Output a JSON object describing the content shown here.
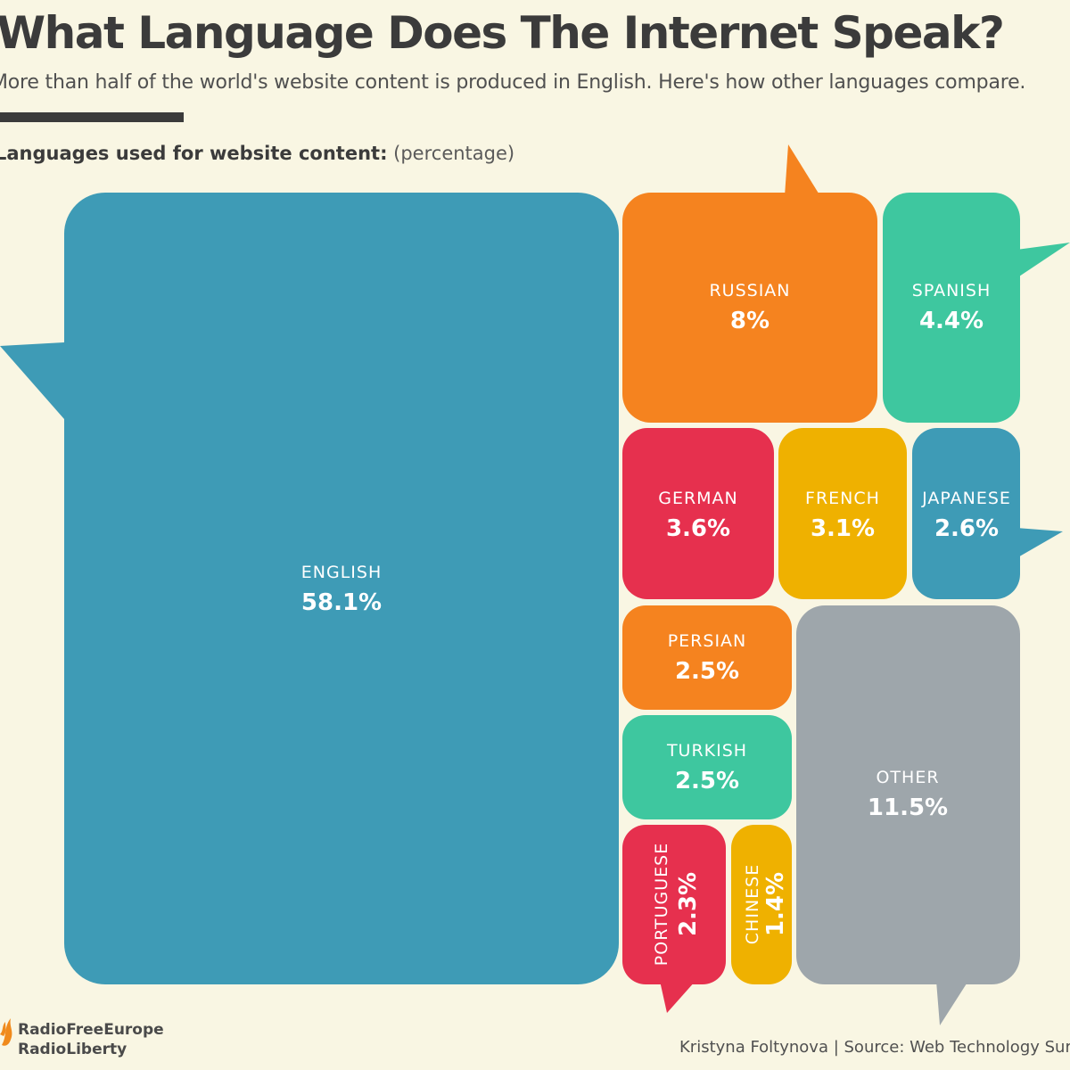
{
  "title": "What Language Does The Internet Speak?",
  "subtitle": "More than half of the world's website content is produced in English. Here's how other languages compare.",
  "chart_label": "Languages used for website content:",
  "chart_unit": "(percentage)",
  "colors": {
    "background": "#f9f6e3",
    "blue": "#3e9bb6",
    "orange": "#f5831f",
    "teal": "#3ec79f",
    "red": "#e6304e",
    "yellow": "#efb100",
    "gray": "#9ea6ab"
  },
  "chart_data": {
    "type": "treemap",
    "unit": "%",
    "items": [
      {
        "label": "ENGLISH",
        "value": 58.1,
        "display": "58.1%",
        "color": "#3e9bb6"
      },
      {
        "label": "RUSSIAN",
        "value": 8,
        "display": "8%",
        "color": "#f5831f"
      },
      {
        "label": "SPANISH",
        "value": 4.4,
        "display": "4.4%",
        "color": "#3ec79f"
      },
      {
        "label": "GERMAN",
        "value": 3.6,
        "display": "3.6%",
        "color": "#e6304e"
      },
      {
        "label": "FRENCH",
        "value": 3.1,
        "display": "3.1%",
        "color": "#efb100"
      },
      {
        "label": "JAPANESE",
        "value": 2.6,
        "display": "2.6%",
        "color": "#3e9bb6"
      },
      {
        "label": "PERSIAN",
        "value": 2.5,
        "display": "2.5%",
        "color": "#f5831f"
      },
      {
        "label": "TURKISH",
        "value": 2.5,
        "display": "2.5%",
        "color": "#3ec79f"
      },
      {
        "label": "PORTUGUESE",
        "value": 2.3,
        "display": "2.3%",
        "color": "#e6304e"
      },
      {
        "label": "CHINESE",
        "value": 1.4,
        "display": "1.4%",
        "color": "#efb100"
      },
      {
        "label": "OTHER",
        "value": 11.5,
        "display": "11.5%",
        "color": "#9ea6ab"
      }
    ]
  },
  "branding": {
    "line1": "RadioFreeEurope",
    "line2": "RadioLiberty",
    "logo_icon": "flame-icon"
  },
  "footer": {
    "credit": "Kristyna Foltynova | Source: Web Technology Surveys"
  }
}
